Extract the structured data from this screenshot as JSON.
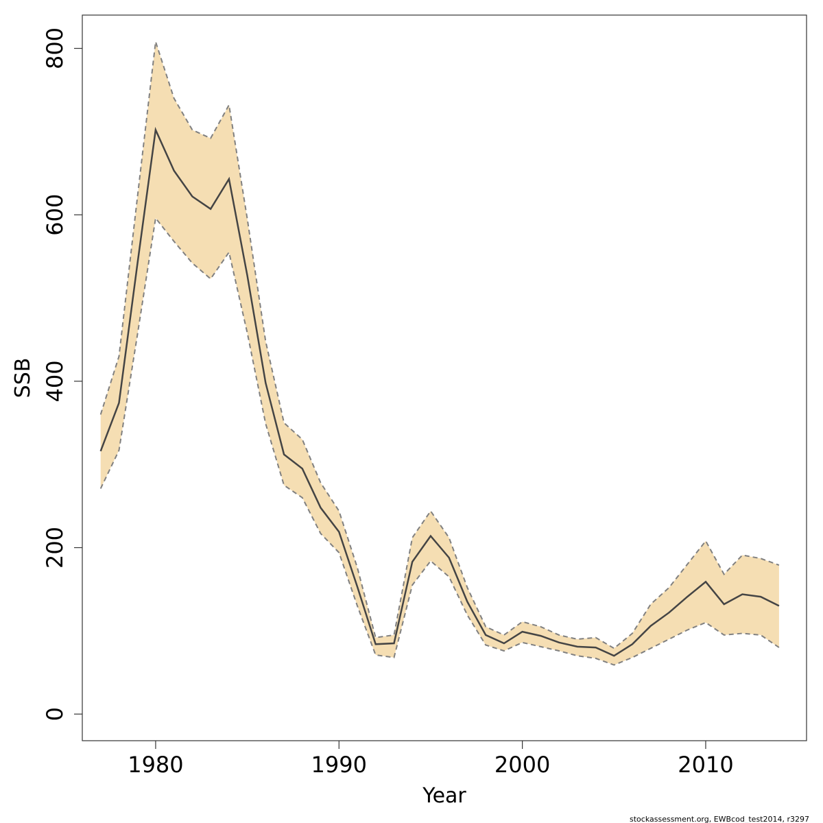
{
  "chart_data": {
    "type": "area",
    "title": "",
    "xlabel": "Year",
    "ylabel": "SSB",
    "xlim": [
      1976,
      2015.5
    ],
    "ylim": [
      -32,
      840
    ],
    "x_ticks": [
      1980,
      1990,
      2000,
      2010
    ],
    "y_ticks": [
      0,
      200,
      400,
      600,
      800
    ],
    "grid": false,
    "legend": "none",
    "colors": {
      "band": "#f5deb3",
      "line": "#444444",
      "bound": "#808080",
      "frame": "#333333"
    },
    "x": [
      1977,
      1978,
      1979,
      1980,
      1981,
      1982,
      1983,
      1984,
      1985,
      1986,
      1987,
      1988,
      1989,
      1990,
      1991,
      1992,
      1993,
      1994,
      1995,
      1996,
      1997,
      1998,
      1999,
      2000,
      2001,
      2002,
      2003,
      2004,
      2005,
      2006,
      2007,
      2008,
      2009,
      2010,
      2011,
      2012,
      2013,
      2014
    ],
    "series": [
      {
        "role": "estimate",
        "values": [
          316,
          374,
          540,
          702,
          653,
          622,
          607,
          643,
          527,
          398,
          312,
          295,
          248,
          219,
          153,
          84,
          85,
          183,
          214,
          188,
          135,
          95,
          85,
          99,
          94,
          86,
          81,
          80,
          70,
          84,
          106,
          122,
          141,
          159,
          132,
          144,
          141,
          130
        ]
      },
      {
        "role": "upper",
        "values": [
          360,
          430,
          620,
          808,
          740,
          702,
          692,
          732,
          595,
          448,
          350,
          330,
          278,
          244,
          176,
          92,
          95,
          212,
          244,
          212,
          152,
          105,
          95,
          111,
          105,
          95,
          90,
          92,
          79,
          97,
          132,
          152,
          180,
          208,
          168,
          191,
          187,
          179
        ]
      },
      {
        "role": "lower",
        "values": [
          271,
          317,
          455,
          596,
          568,
          542,
          523,
          555,
          458,
          349,
          275,
          260,
          217,
          194,
          130,
          71,
          68,
          155,
          184,
          165,
          119,
          83,
          76,
          86,
          81,
          76,
          70,
          67,
          59,
          68,
          79,
          90,
          101,
          110,
          95,
          97,
          95,
          80
        ]
      }
    ]
  },
  "footer": "stockassessment.org, EWBcod_test2014, r3297"
}
